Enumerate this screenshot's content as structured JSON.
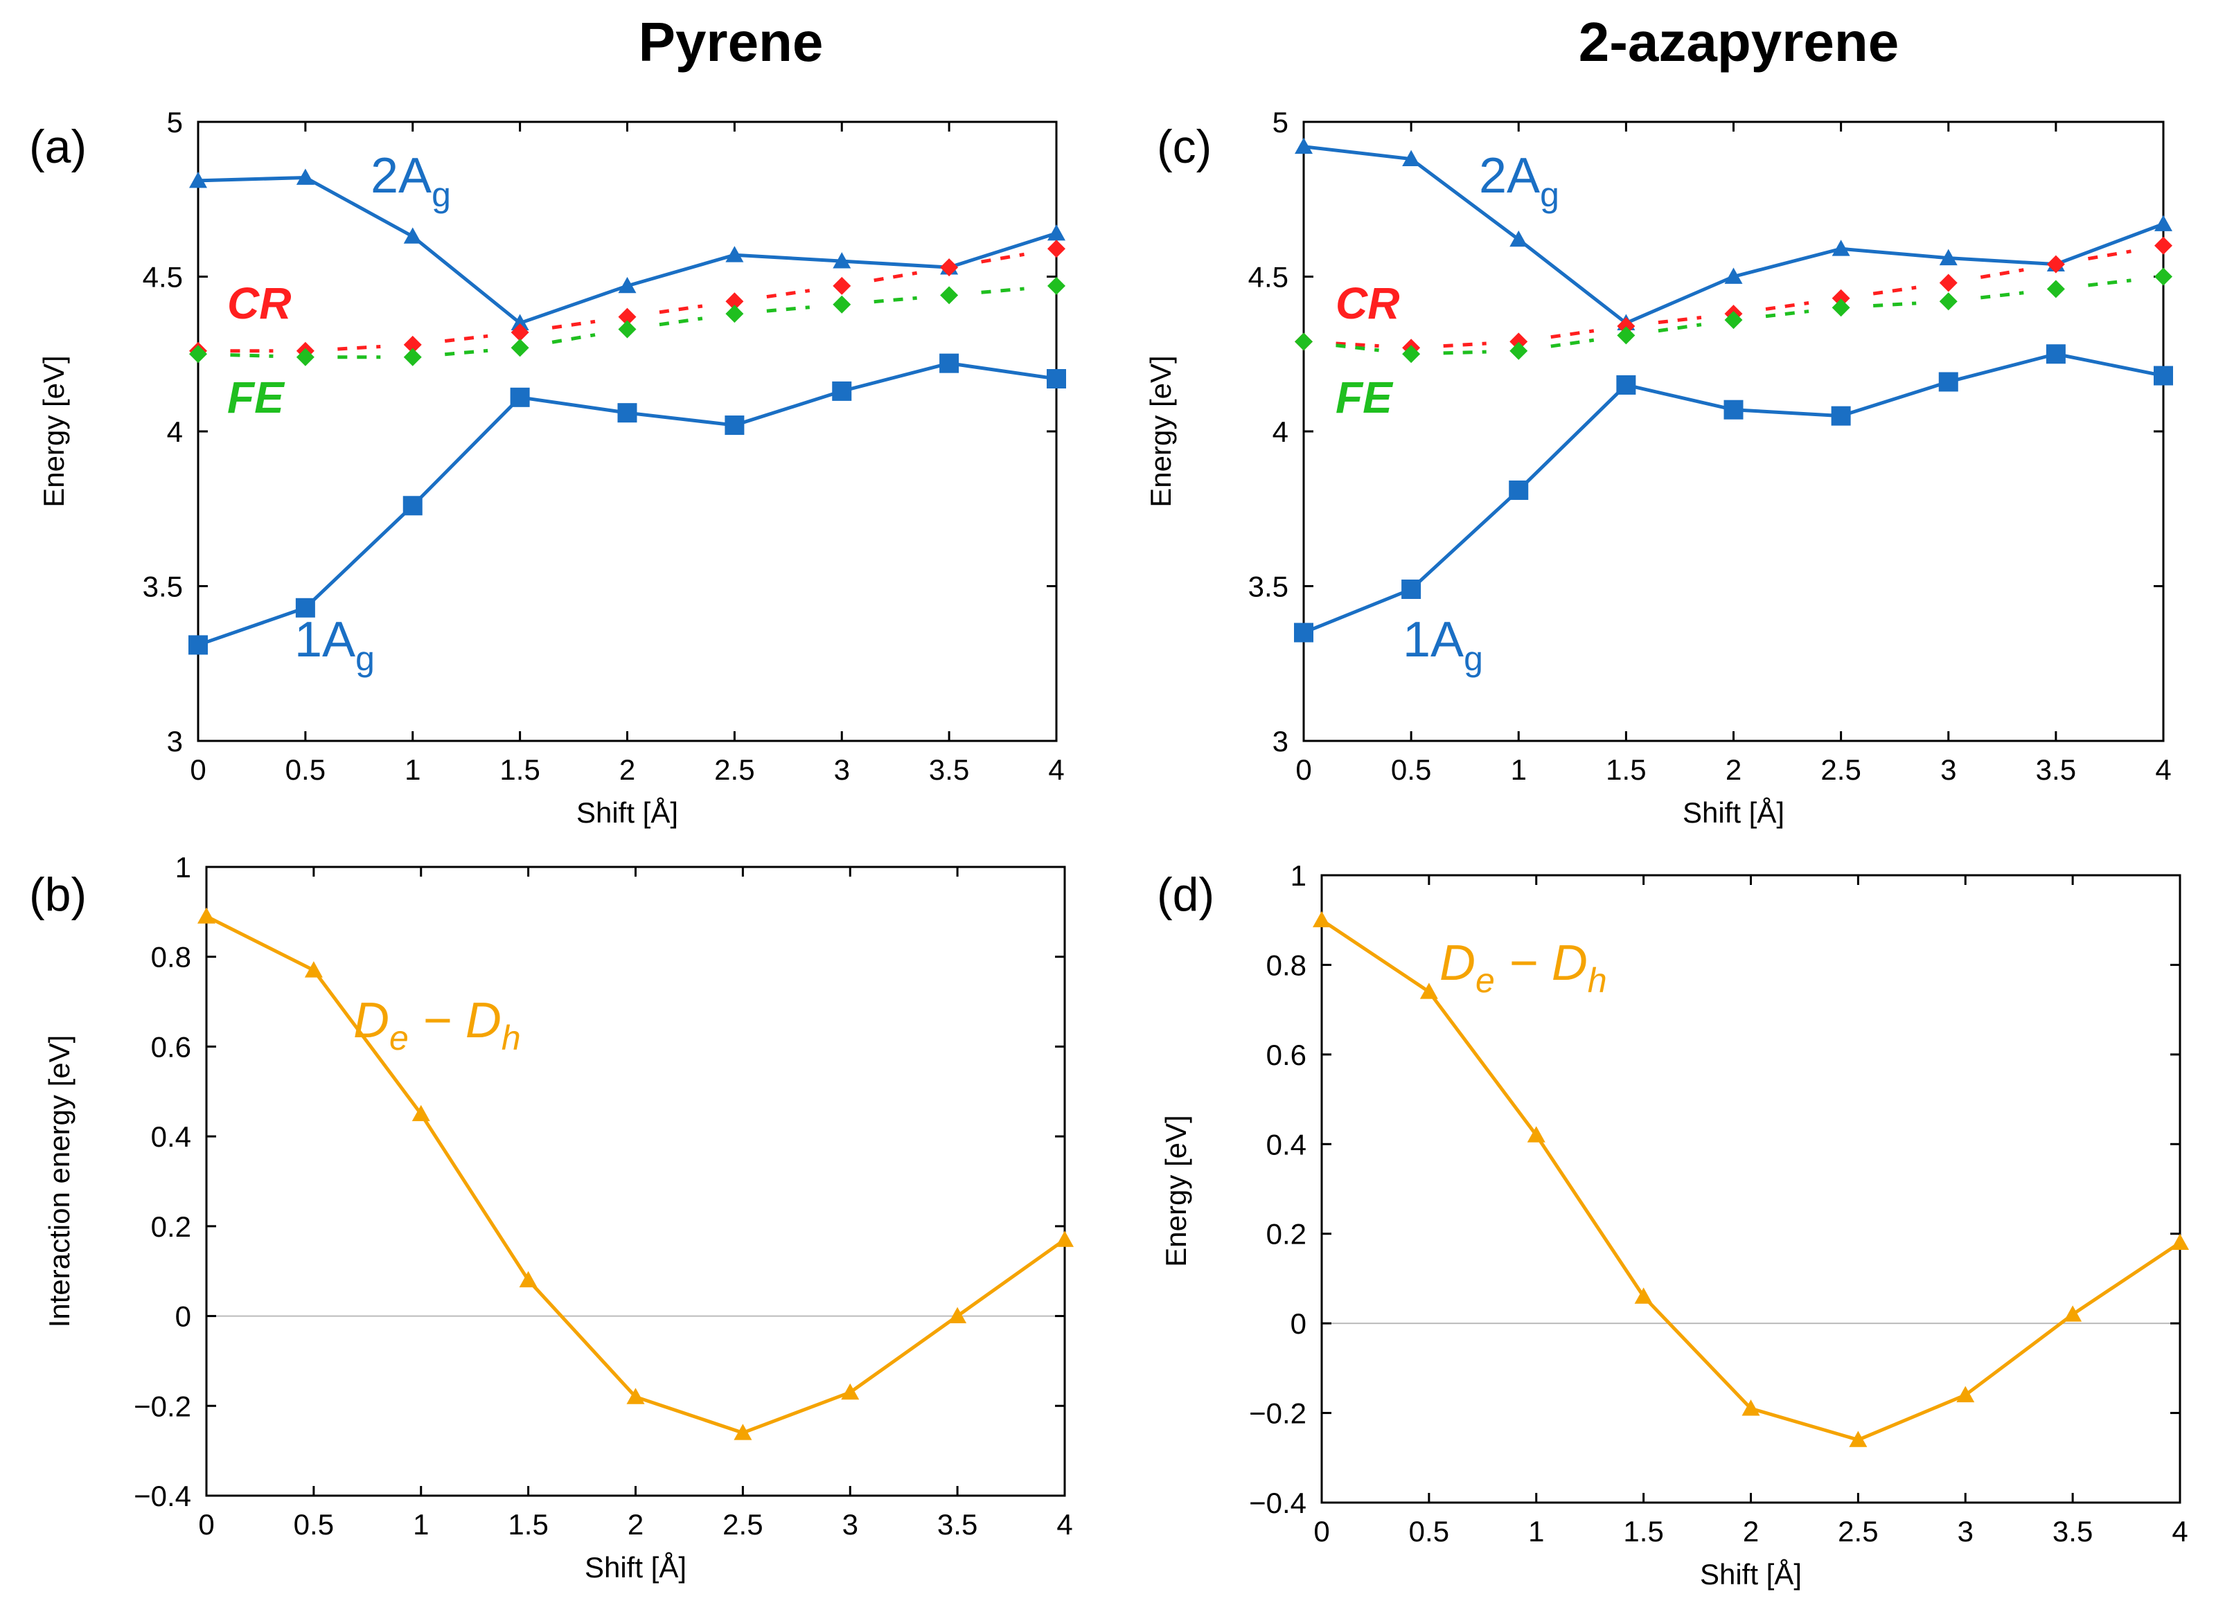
{
  "column_titles": [
    "Pyrene",
    "2-azapyrene"
  ],
  "colors": {
    "ag": "#1a6fc4",
    "cr": "#ff1f1f",
    "fe": "#1fbf1f",
    "de_dh": "#f5a300",
    "zero_line": "#bbbbbb"
  },
  "chart_data": [
    {
      "panel": "(a)",
      "type": "line",
      "column": "Pyrene",
      "xlabel": "Shift [Å]",
      "ylabel": "Energy [eV]",
      "xlim": [
        0,
        4
      ],
      "ylim": [
        3,
        5
      ],
      "xticks": [
        "0",
        "0.5",
        "1",
        "1.5",
        "2",
        "2.5",
        "3",
        "3.5",
        "4"
      ],
      "yticks": [
        "3",
        "3.5",
        "4",
        "4.5",
        "5"
      ],
      "x": [
        0,
        0.5,
        1,
        1.5,
        2,
        2.5,
        3,
        3.5,
        4
      ],
      "series": [
        {
          "name": "2Ag",
          "label_main": "2A",
          "label_sub": "g",
          "marker": "triangle",
          "style": "solid",
          "color": "#1a6fc4",
          "values": [
            4.81,
            4.82,
            4.63,
            4.35,
            4.47,
            4.57,
            4.55,
            4.53,
            4.64
          ]
        },
        {
          "name": "1Ag",
          "label_main": "1A",
          "label_sub": "g",
          "marker": "square",
          "style": "solid",
          "color": "#1a6fc4",
          "values": [
            3.31,
            3.43,
            3.76,
            4.11,
            4.06,
            4.02,
            4.13,
            4.22,
            4.17
          ]
        },
        {
          "name": "CR",
          "label_main": "CR",
          "marker": "diamond",
          "style": "dashed",
          "color": "#ff1f1f",
          "values": [
            4.26,
            4.26,
            4.28,
            4.32,
            4.37,
            4.42,
            4.47,
            4.53,
            4.59
          ]
        },
        {
          "name": "FE",
          "label_main": "FE",
          "marker": "diamond",
          "style": "dashed",
          "color": "#1fbf1f",
          "values": [
            4.25,
            4.24,
            4.24,
            4.27,
            4.33,
            4.38,
            4.41,
            4.44,
            4.47
          ]
        }
      ]
    },
    {
      "panel": "(b)",
      "type": "line",
      "column": "Pyrene",
      "xlabel": "Shift [Å]",
      "ylabel": "Interaction energy [eV]",
      "xlim": [
        0,
        4
      ],
      "ylim": [
        -0.4,
        1
      ],
      "zero_line": true,
      "xticks": [
        "0",
        "0.5",
        "1",
        "1.5",
        "2",
        "2.5",
        "3",
        "3.5",
        "4"
      ],
      "yticks": [
        "−0.4",
        "−0.2",
        "0",
        "0.2",
        "0.4",
        "0.6",
        "0.8",
        "1"
      ],
      "x": [
        0,
        0.5,
        1,
        1.5,
        2,
        2.5,
        3,
        3.5,
        4
      ],
      "series": [
        {
          "name": "De − Dh",
          "label_main": "D",
          "label_sub1": "e",
          "label_mid": " − D",
          "label_sub2": "h",
          "marker": "triangle",
          "style": "solid",
          "color": "#f5a300",
          "values": [
            0.89,
            0.77,
            0.45,
            0.08,
            -0.18,
            -0.26,
            -0.17,
            0.0,
            0.17
          ]
        }
      ]
    },
    {
      "panel": "(c)",
      "type": "line",
      "column": "2-azapyrene",
      "xlabel": "Shift [Å]",
      "ylabel": "Energy [eV]",
      "xlim": [
        0,
        4
      ],
      "ylim": [
        3,
        5
      ],
      "xticks": [
        "0",
        "0.5",
        "1",
        "1.5",
        "2",
        "2.5",
        "3",
        "3.5",
        "4"
      ],
      "yticks": [
        "3",
        "3.5",
        "4",
        "4.5",
        "5"
      ],
      "x": [
        0,
        0.5,
        1,
        1.5,
        2,
        2.5,
        3,
        3.5,
        4
      ],
      "series": [
        {
          "name": "2Ag",
          "label_main": "2A",
          "label_sub": "g",
          "marker": "triangle",
          "style": "solid",
          "color": "#1a6fc4",
          "values": [
            4.92,
            4.88,
            4.62,
            4.35,
            4.5,
            4.59,
            4.56,
            4.54,
            4.67
          ]
        },
        {
          "name": "1Ag",
          "label_main": "1A",
          "label_sub": "g",
          "marker": "square",
          "style": "solid",
          "color": "#1a6fc4",
          "values": [
            3.35,
            3.49,
            3.81,
            4.15,
            4.07,
            4.05,
            4.16,
            4.25,
            4.18
          ]
        },
        {
          "name": "CR",
          "label_main": "CR",
          "marker": "diamond",
          "style": "dashed",
          "color": "#ff1f1f",
          "values": [
            4.29,
            4.27,
            4.29,
            4.34,
            4.38,
            4.43,
            4.48,
            4.54,
            4.6
          ]
        },
        {
          "name": "FE",
          "label_main": "FE",
          "marker": "diamond",
          "style": "dashed",
          "color": "#1fbf1f",
          "values": [
            4.29,
            4.25,
            4.26,
            4.31,
            4.36,
            4.4,
            4.42,
            4.46,
            4.5
          ]
        }
      ]
    },
    {
      "panel": "(d)",
      "type": "line",
      "column": "2-azapyrene",
      "xlabel": "Shift [Å]",
      "ylabel": "Energy [eV]",
      "xlim": [
        0,
        4
      ],
      "ylim": [
        -0.4,
        1
      ],
      "zero_line": true,
      "xticks": [
        "0",
        "0.5",
        "1",
        "1.5",
        "2",
        "2.5",
        "3",
        "3.5",
        "4"
      ],
      "yticks": [
        "−0.4",
        "−0.2",
        "0",
        "0.2",
        "0.4",
        "0.6",
        "0.8",
        "1"
      ],
      "x": [
        0,
        0.5,
        1,
        1.5,
        2,
        2.5,
        3,
        3.5,
        4
      ],
      "series": [
        {
          "name": "De − Dh",
          "label_main": "D",
          "label_sub1": "e",
          "label_mid": " − D",
          "label_sub2": "h",
          "marker": "triangle",
          "style": "solid",
          "color": "#f5a300",
          "values": [
            0.9,
            0.74,
            0.42,
            0.06,
            -0.19,
            -0.26,
            -0.16,
            0.02,
            0.18
          ]
        }
      ]
    }
  ]
}
